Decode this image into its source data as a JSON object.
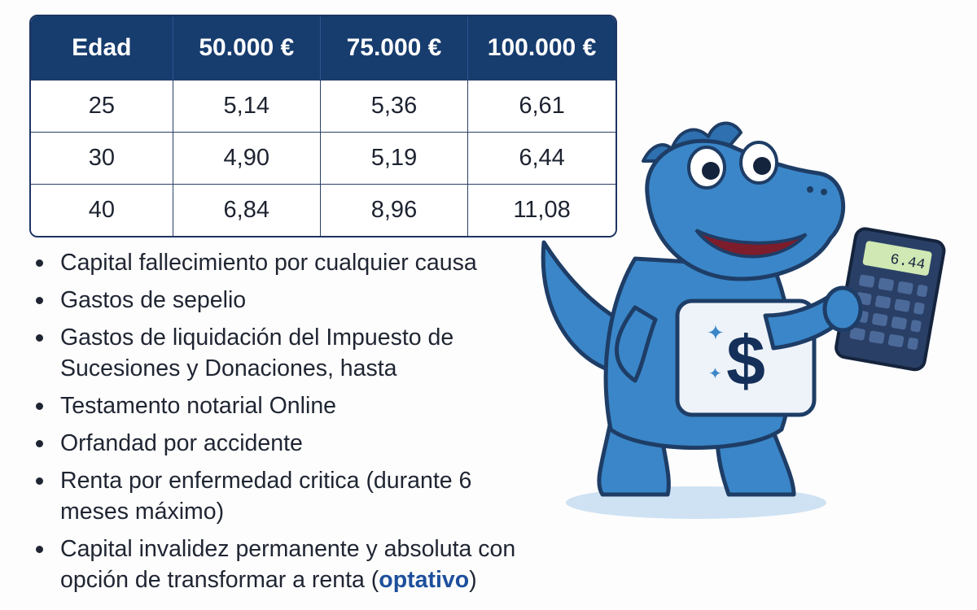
{
  "table": {
    "headers": [
      "Edad",
      "50.000 €",
      "75.000 €",
      "100.000 €"
    ],
    "rows": [
      [
        "25",
        "5,14",
        "5,36",
        "6,61"
      ],
      [
        "30",
        "4,90",
        "5,19",
        "6,44"
      ],
      [
        "40",
        "6,84",
        "8,96",
        "11,08"
      ]
    ]
  },
  "features": [
    "Capital fallecimiento por cualquier causa",
    "Gastos de sepelio",
    "Gastos de liquidación del Impuesto de Sucesiones y Donaciones, hasta",
    "Testamento notarial Online",
    "Orfandad por accidente",
    "Renta por enfermedad critica (durante 6 meses máximo)",
    "Capital invalidez permanente y absoluta con opción de transformar a renta"
  ],
  "optional_note": {
    "open": "(",
    "word": "optativo",
    "close": ")"
  },
  "mascot": {
    "calculator_display": "6.44",
    "badge_symbol": "$"
  },
  "colors": {
    "header_bg": "#173c6e",
    "mascot_blue": "#3a86c8",
    "accent": "#1e4f9c"
  }
}
